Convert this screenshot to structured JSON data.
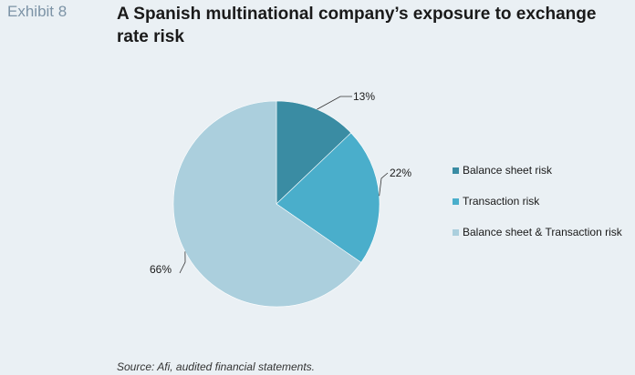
{
  "header": {
    "exhibit": "Exhibit 8",
    "title": "A Spanish multinational company’s exposure to exchange rate risk"
  },
  "footer": {
    "source": "Source: Afi, audited financial statements."
  },
  "chart_data": {
    "type": "pie",
    "title": "A Spanish multinational company’s exposure to exchange rate risk",
    "legend_position": "right",
    "slices": [
      {
        "name": "Balance sheet risk",
        "value": 13,
        "label": "13%",
        "color": "#3a8ca3"
      },
      {
        "name": "Transaction risk",
        "value": 22,
        "label": "22%",
        "color": "#4aaecb"
      },
      {
        "name": "Balance sheet & Transaction risk",
        "value": 66,
        "label": "66%",
        "color": "#abcfdd"
      }
    ]
  }
}
